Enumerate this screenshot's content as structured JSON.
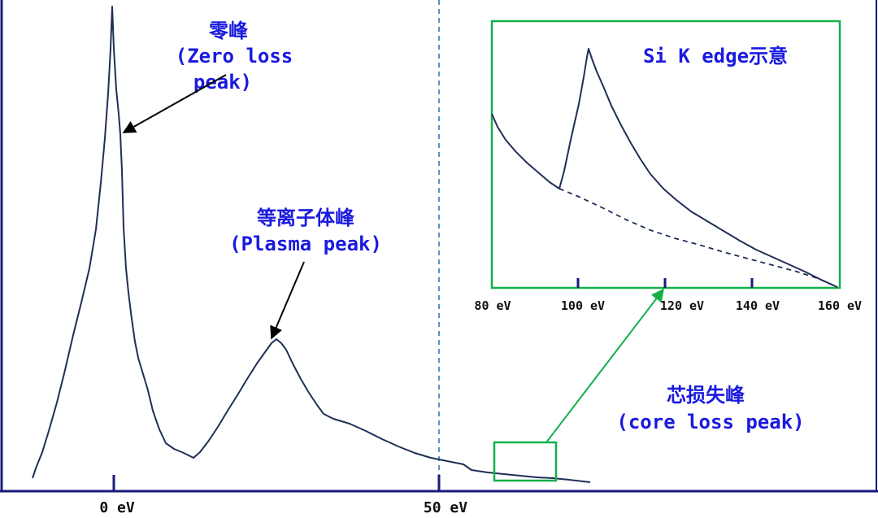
{
  "labels": {
    "zero_loss": {
      "line1": "零峰",
      "line2": "(Zero loss",
      "line3": "peak)"
    },
    "plasma": {
      "line1": "等离子体峰",
      "line2": "(Plasma peak)"
    },
    "core_loss": {
      "line1": "芯损失峰",
      "line2": "(core loss peak)"
    },
    "inset_title": "Si K edge示意"
  },
  "main_axis": {
    "ticks": [
      "0 eV",
      "50 eV"
    ]
  },
  "inset_axis": {
    "ticks": [
      "80 eV",
      "100 eV",
      "120 eV",
      "140 eV",
      "160 eV"
    ]
  },
  "colors": {
    "axis": "#1a1a7a",
    "curve": "#1f2f57",
    "label": "#1a1adf",
    "highlight": "#13b04a",
    "dashed_divider": "#3a6fd0"
  }
}
